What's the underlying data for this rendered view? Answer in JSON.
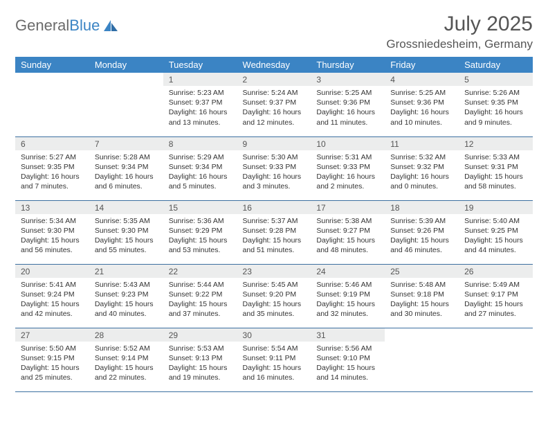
{
  "brand": {
    "part1": "General",
    "part2": "Blue"
  },
  "title": "July 2025",
  "location": "Grossniedesheim, Germany",
  "colors": {
    "header_bg": "#3b84c4",
    "header_text": "#ffffff",
    "daynum_bg": "#eceded",
    "border": "#3b6fa0",
    "text": "#333333",
    "title_text": "#555555"
  },
  "weekdays": [
    "Sunday",
    "Monday",
    "Tuesday",
    "Wednesday",
    "Thursday",
    "Friday",
    "Saturday"
  ],
  "weeks": [
    [
      null,
      null,
      {
        "n": "1",
        "sr": "5:23 AM",
        "ss": "9:37 PM",
        "dl": "16 hours and 13 minutes."
      },
      {
        "n": "2",
        "sr": "5:24 AM",
        "ss": "9:37 PM",
        "dl": "16 hours and 12 minutes."
      },
      {
        "n": "3",
        "sr": "5:25 AM",
        "ss": "9:36 PM",
        "dl": "16 hours and 11 minutes."
      },
      {
        "n": "4",
        "sr": "5:25 AM",
        "ss": "9:36 PM",
        "dl": "16 hours and 10 minutes."
      },
      {
        "n": "5",
        "sr": "5:26 AM",
        "ss": "9:35 PM",
        "dl": "16 hours and 9 minutes."
      }
    ],
    [
      {
        "n": "6",
        "sr": "5:27 AM",
        "ss": "9:35 PM",
        "dl": "16 hours and 7 minutes."
      },
      {
        "n": "7",
        "sr": "5:28 AM",
        "ss": "9:34 PM",
        "dl": "16 hours and 6 minutes."
      },
      {
        "n": "8",
        "sr": "5:29 AM",
        "ss": "9:34 PM",
        "dl": "16 hours and 5 minutes."
      },
      {
        "n": "9",
        "sr": "5:30 AM",
        "ss": "9:33 PM",
        "dl": "16 hours and 3 minutes."
      },
      {
        "n": "10",
        "sr": "5:31 AM",
        "ss": "9:33 PM",
        "dl": "16 hours and 2 minutes."
      },
      {
        "n": "11",
        "sr": "5:32 AM",
        "ss": "9:32 PM",
        "dl": "16 hours and 0 minutes."
      },
      {
        "n": "12",
        "sr": "5:33 AM",
        "ss": "9:31 PM",
        "dl": "15 hours and 58 minutes."
      }
    ],
    [
      {
        "n": "13",
        "sr": "5:34 AM",
        "ss": "9:30 PM",
        "dl": "15 hours and 56 minutes."
      },
      {
        "n": "14",
        "sr": "5:35 AM",
        "ss": "9:30 PM",
        "dl": "15 hours and 55 minutes."
      },
      {
        "n": "15",
        "sr": "5:36 AM",
        "ss": "9:29 PM",
        "dl": "15 hours and 53 minutes."
      },
      {
        "n": "16",
        "sr": "5:37 AM",
        "ss": "9:28 PM",
        "dl": "15 hours and 51 minutes."
      },
      {
        "n": "17",
        "sr": "5:38 AM",
        "ss": "9:27 PM",
        "dl": "15 hours and 48 minutes."
      },
      {
        "n": "18",
        "sr": "5:39 AM",
        "ss": "9:26 PM",
        "dl": "15 hours and 46 minutes."
      },
      {
        "n": "19",
        "sr": "5:40 AM",
        "ss": "9:25 PM",
        "dl": "15 hours and 44 minutes."
      }
    ],
    [
      {
        "n": "20",
        "sr": "5:41 AM",
        "ss": "9:24 PM",
        "dl": "15 hours and 42 minutes."
      },
      {
        "n": "21",
        "sr": "5:43 AM",
        "ss": "9:23 PM",
        "dl": "15 hours and 40 minutes."
      },
      {
        "n": "22",
        "sr": "5:44 AM",
        "ss": "9:22 PM",
        "dl": "15 hours and 37 minutes."
      },
      {
        "n": "23",
        "sr": "5:45 AM",
        "ss": "9:20 PM",
        "dl": "15 hours and 35 minutes."
      },
      {
        "n": "24",
        "sr": "5:46 AM",
        "ss": "9:19 PM",
        "dl": "15 hours and 32 minutes."
      },
      {
        "n": "25",
        "sr": "5:48 AM",
        "ss": "9:18 PM",
        "dl": "15 hours and 30 minutes."
      },
      {
        "n": "26",
        "sr": "5:49 AM",
        "ss": "9:17 PM",
        "dl": "15 hours and 27 minutes."
      }
    ],
    [
      {
        "n": "27",
        "sr": "5:50 AM",
        "ss": "9:15 PM",
        "dl": "15 hours and 25 minutes."
      },
      {
        "n": "28",
        "sr": "5:52 AM",
        "ss": "9:14 PM",
        "dl": "15 hours and 22 minutes."
      },
      {
        "n": "29",
        "sr": "5:53 AM",
        "ss": "9:13 PM",
        "dl": "15 hours and 19 minutes."
      },
      {
        "n": "30",
        "sr": "5:54 AM",
        "ss": "9:11 PM",
        "dl": "15 hours and 16 minutes."
      },
      {
        "n": "31",
        "sr": "5:56 AM",
        "ss": "9:10 PM",
        "dl": "15 hours and 14 minutes."
      },
      null,
      null
    ]
  ],
  "labels": {
    "sunrise": "Sunrise:",
    "sunset": "Sunset:",
    "daylight": "Daylight:"
  }
}
